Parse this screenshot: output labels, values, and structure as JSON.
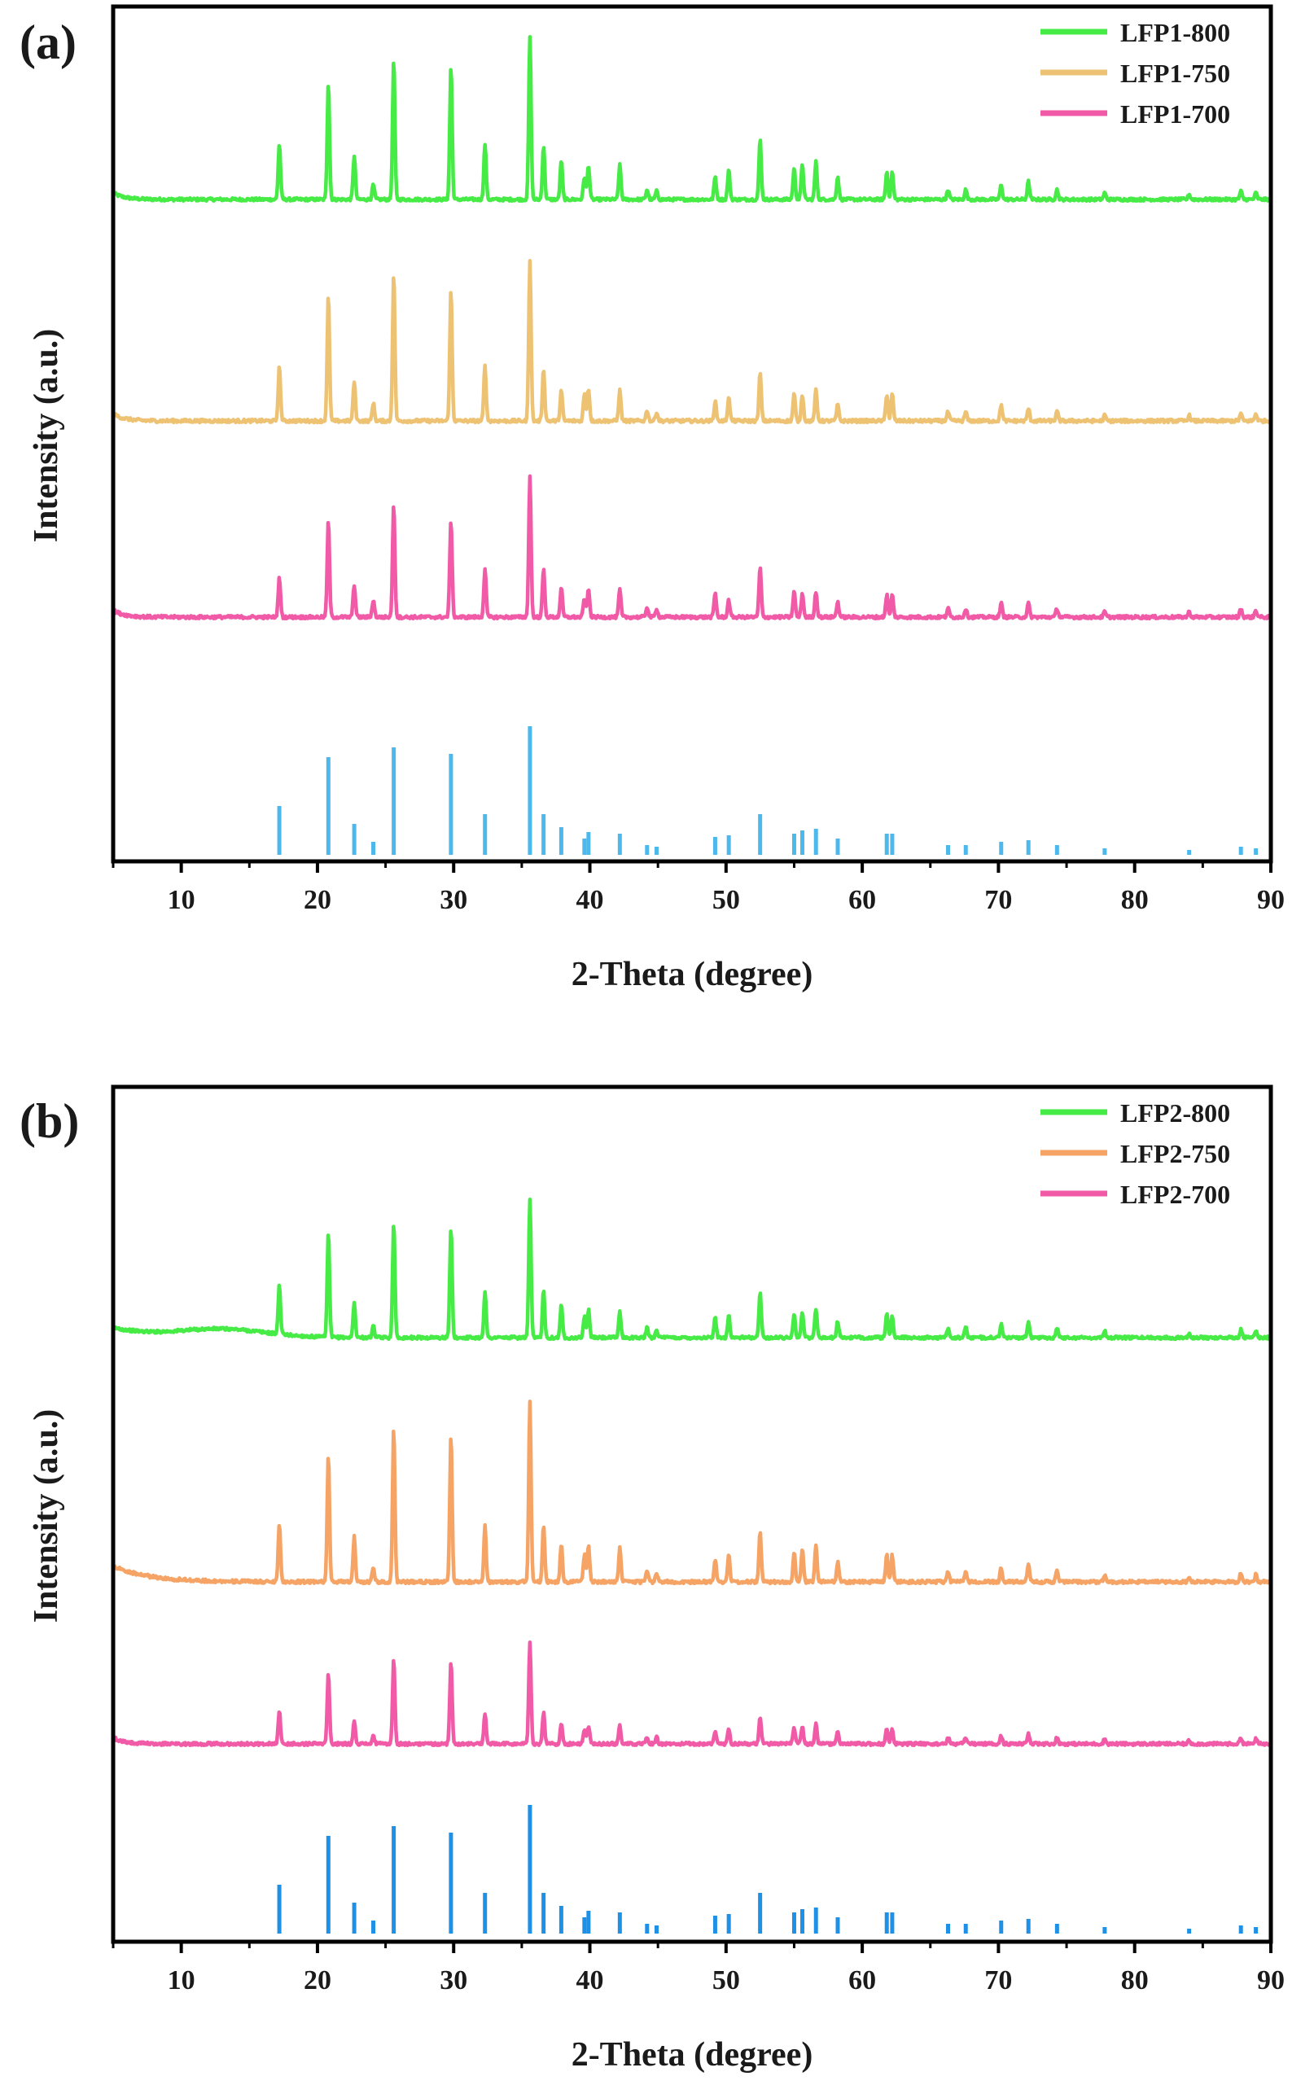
{
  "chart_data": [
    {
      "type": "line",
      "panel_label": "(a)",
      "xlabel": "2-Theta (degree)",
      "ylabel": "Intensity (a.u.)",
      "xlim": [
        5,
        90
      ],
      "x_ticks": [
        "10",
        "20",
        "30",
        "40",
        "50",
        "60",
        "70",
        "80",
        "90"
      ],
      "y_ticks_shown": false,
      "grid": false,
      "legend_position": "top-right",
      "legend": [
        "LFP1-800",
        "LFP1-750",
        "LFP1-700"
      ],
      "peak_positions_2theta": [
        17.2,
        20.8,
        22.7,
        24.1,
        25.6,
        29.8,
        32.3,
        35.6,
        36.6,
        37.9,
        39.6,
        39.9,
        42.2,
        44.2,
        44.9,
        49.2,
        50.2,
        52.5,
        55.0,
        55.6,
        56.6,
        58.2,
        61.8,
        62.2,
        66.3,
        67.6,
        70.2,
        72.2,
        74.3,
        77.8,
        84.0,
        87.8,
        88.9
      ],
      "series": [
        {
          "name": "LFP1-800",
          "color": "#46eb46",
          "relative_intensity": [
            0.34,
            0.72,
            0.27,
            0.09,
            0.86,
            0.82,
            0.34,
            1.0,
            0.33,
            0.24,
            0.14,
            0.21,
            0.21,
            0.06,
            0.05,
            0.14,
            0.18,
            0.37,
            0.19,
            0.22,
            0.23,
            0.14,
            0.17,
            0.17,
            0.06,
            0.06,
            0.09,
            0.11,
            0.06,
            0.04,
            0.03,
            0.05,
            0.04
          ]
        },
        {
          "name": "LFP1-750",
          "color": "#eec273",
          "relative_intensity": [
            0.3,
            0.7,
            0.22,
            0.1,
            0.82,
            0.73,
            0.31,
            0.9,
            0.29,
            0.17,
            0.15,
            0.18,
            0.17,
            0.06,
            0.05,
            0.11,
            0.13,
            0.27,
            0.15,
            0.15,
            0.17,
            0.09,
            0.15,
            0.15,
            0.05,
            0.05,
            0.09,
            0.07,
            0.05,
            0.03,
            0.03,
            0.04,
            0.04
          ]
        },
        {
          "name": "LFP1-700",
          "color": "#f15aa6",
          "relative_intensity": [
            0.23,
            0.56,
            0.19,
            0.1,
            0.66,
            0.57,
            0.28,
            0.82,
            0.28,
            0.17,
            0.11,
            0.16,
            0.16,
            0.06,
            0.05,
            0.14,
            0.1,
            0.29,
            0.15,
            0.14,
            0.15,
            0.09,
            0.13,
            0.13,
            0.05,
            0.05,
            0.08,
            0.08,
            0.05,
            0.03,
            0.03,
            0.05,
            0.04
          ]
        },
        {
          "name": "",
          "color": "#4cb8ec",
          "relative_intensity": [
            0.3,
            0.6,
            0.19,
            0.08,
            0.66,
            0.62,
            0.25,
            0.79,
            0.25,
            0.17,
            0.1,
            0.14,
            0.13,
            0.06,
            0.05,
            0.11,
            0.12,
            0.25,
            0.13,
            0.15,
            0.16,
            0.1,
            0.13,
            0.13,
            0.06,
            0.06,
            0.08,
            0.09,
            0.06,
            0.04,
            0.03,
            0.05,
            0.04
          ]
        }
      ]
    },
    {
      "type": "line",
      "panel_label": "(b)",
      "xlabel": "2-Theta (degree)",
      "ylabel": "Intensity (a.u.)",
      "xlim": [
        5,
        90
      ],
      "x_ticks": [
        "10",
        "20",
        "30",
        "40",
        "50",
        "60",
        "70",
        "80",
        "90"
      ],
      "y_ticks_shown": false,
      "grid": false,
      "legend_position": "top-right",
      "legend": [
        "LFP2-800",
        "LFP2-750",
        "LFP2-700"
      ],
      "peak_positions_2theta": [
        17.2,
        20.8,
        22.7,
        24.1,
        25.6,
        29.8,
        32.3,
        35.6,
        36.6,
        37.9,
        39.6,
        39.9,
        42.2,
        44.2,
        44.9,
        49.2,
        50.2,
        52.5,
        55.0,
        55.6,
        56.6,
        58.2,
        61.8,
        62.2,
        66.3,
        67.6,
        70.2,
        72.2,
        74.3,
        77.8,
        84.0,
        87.8,
        88.9
      ],
      "series": [
        {
          "name": "LFP2-800",
          "color": "#46eb46",
          "relative_intensity": [
            0.3,
            0.64,
            0.21,
            0.07,
            0.71,
            0.68,
            0.28,
            0.84,
            0.29,
            0.2,
            0.13,
            0.17,
            0.16,
            0.06,
            0.05,
            0.12,
            0.14,
            0.28,
            0.15,
            0.16,
            0.18,
            0.1,
            0.14,
            0.14,
            0.06,
            0.06,
            0.08,
            0.09,
            0.06,
            0.04,
            0.03,
            0.05,
            0.04
          ]
        },
        {
          "name": "LFP2-750",
          "color": "#f5a466",
          "relative_intensity": [
            0.33,
            0.71,
            0.25,
            0.08,
            0.86,
            0.82,
            0.31,
            1.0,
            0.32,
            0.21,
            0.15,
            0.2,
            0.19,
            0.06,
            0.05,
            0.13,
            0.15,
            0.28,
            0.17,
            0.18,
            0.2,
            0.11,
            0.15,
            0.15,
            0.06,
            0.06,
            0.08,
            0.1,
            0.06,
            0.04,
            0.03,
            0.05,
            0.04
          ]
        },
        {
          "name": "LFP2-700",
          "color": "#f15aa6",
          "relative_intensity": [
            0.2,
            0.43,
            0.14,
            0.05,
            0.52,
            0.5,
            0.19,
            0.62,
            0.19,
            0.12,
            0.08,
            0.11,
            0.11,
            0.04,
            0.04,
            0.08,
            0.09,
            0.17,
            0.1,
            0.11,
            0.12,
            0.07,
            0.09,
            0.09,
            0.04,
            0.04,
            0.05,
            0.06,
            0.04,
            0.03,
            0.02,
            0.04,
            0.03
          ]
        },
        {
          "name": "",
          "color": "#1e90e6",
          "relative_intensity": [
            0.3,
            0.6,
            0.19,
            0.08,
            0.66,
            0.62,
            0.25,
            0.79,
            0.25,
            0.17,
            0.1,
            0.14,
            0.13,
            0.06,
            0.05,
            0.11,
            0.12,
            0.25,
            0.13,
            0.15,
            0.16,
            0.1,
            0.13,
            0.13,
            0.06,
            0.06,
            0.08,
            0.09,
            0.06,
            0.04,
            0.03,
            0.05,
            0.04
          ]
        }
      ]
    }
  ]
}
